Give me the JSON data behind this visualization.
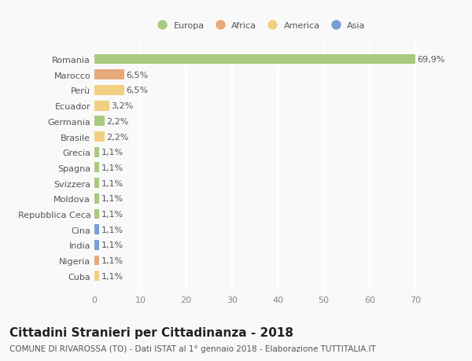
{
  "countries": [
    "Romania",
    "Marocco",
    "Perù",
    "Ecuador",
    "Germania",
    "Brasile",
    "Grecia",
    "Spagna",
    "Svizzera",
    "Moldova",
    "Repubblica Ceca",
    "Cina",
    "India",
    "Nigeria",
    "Cuba"
  ],
  "values": [
    69.9,
    6.5,
    6.5,
    3.2,
    2.2,
    2.2,
    1.1,
    1.1,
    1.1,
    1.1,
    1.1,
    1.1,
    1.1,
    1.1,
    1.1
  ],
  "labels": [
    "69,9%",
    "6,5%",
    "6,5%",
    "3,2%",
    "2,2%",
    "2,2%",
    "1,1%",
    "1,1%",
    "1,1%",
    "1,1%",
    "1,1%",
    "1,1%",
    "1,1%",
    "1,1%",
    "1,1%"
  ],
  "continents": [
    "Europa",
    "Africa",
    "America",
    "America",
    "Europa",
    "America",
    "Europa",
    "Europa",
    "Europa",
    "Europa",
    "Europa",
    "Asia",
    "Asia",
    "Africa",
    "America"
  ],
  "continent_colors": {
    "Europa": "#a8c97f",
    "Africa": "#e8a97a",
    "America": "#f0d080",
    "Asia": "#7a9fd4"
  },
  "legend_order": [
    "Europa",
    "Africa",
    "America",
    "Asia"
  ],
  "title": "Cittadini Stranieri per Cittadinanza - 2018",
  "subtitle": "COMUNE DI RIVAROSSA (TO) - Dati ISTAT al 1° gennaio 2018 - Elaborazione TUTTITALIA.IT",
  "xlim": [
    0,
    72
  ],
  "xticks": [
    0,
    10,
    20,
    30,
    40,
    50,
    60,
    70
  ],
  "bg_color": "#f9f9f9",
  "grid_color": "#ffffff",
  "bar_height": 0.65,
  "label_fontsize": 8.0,
  "title_fontsize": 11,
  "subtitle_fontsize": 7.5,
  "tick_fontsize": 8.0
}
